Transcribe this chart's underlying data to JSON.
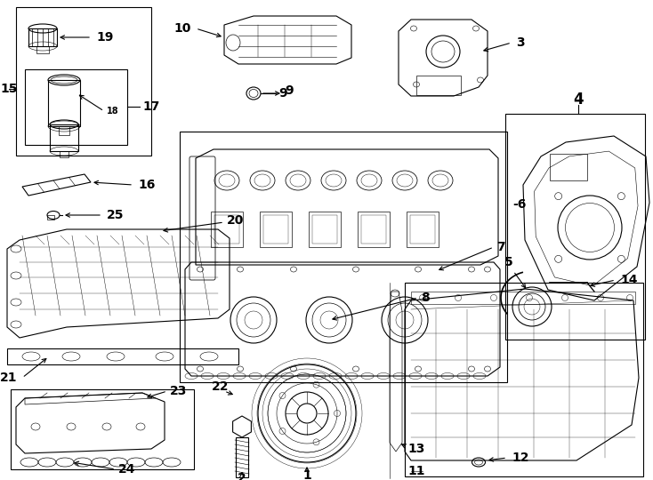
{
  "bg_color": "#ffffff",
  "line_color": "#000000",
  "fig_width": 7.34,
  "fig_height": 5.4,
  "dpi": 100,
  "lw": 0.8,
  "fontsize_label": 10,
  "fontsize_small": 7
}
